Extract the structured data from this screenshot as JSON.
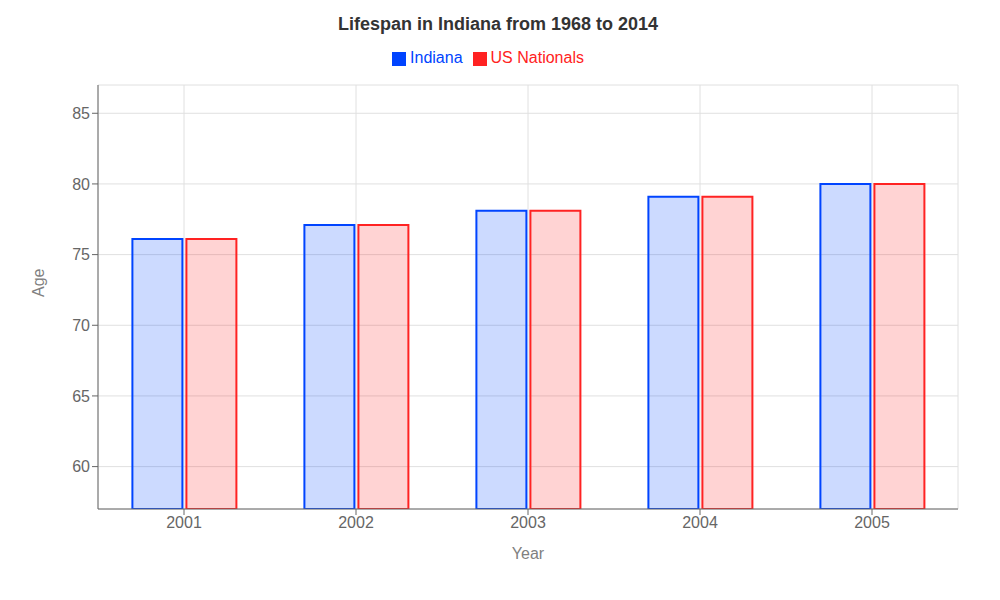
{
  "chart_data": {
    "type": "bar",
    "title": "Lifespan in Indiana from 1968 to 2014",
    "xlabel": "Year",
    "ylabel": "Age",
    "categories": [
      "2001",
      "2002",
      "2003",
      "2004",
      "2005"
    ],
    "series": [
      {
        "name": "Indiana",
        "color": "#0044ff",
        "values": [
          76.1,
          77.1,
          78.1,
          79.1,
          80.0
        ]
      },
      {
        "name": "US Nationals",
        "color": "#ff2222",
        "values": [
          76.1,
          77.1,
          78.1,
          79.1,
          80.0
        ]
      }
    ],
    "ylim": [
      57,
      87
    ],
    "yticks": [
      60,
      65,
      70,
      75,
      80,
      85
    ],
    "grid": true,
    "legend": "top"
  }
}
